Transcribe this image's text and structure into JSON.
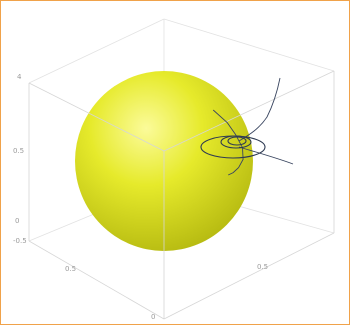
{
  "chart_data": {
    "type": "3d-scatter",
    "title": "",
    "xlabel": "",
    "ylabel": "",
    "zlabel": "",
    "box": "on",
    "grid": "off",
    "object": {
      "shape": "sphere",
      "color": "#e6ea2b",
      "center": [
        0,
        0,
        0
      ],
      "radius": 1
    },
    "trajectory": {
      "color": "#3a4660",
      "points": [
        [
          0.35,
          0.9,
          0.95
        ],
        [
          0.62,
          0.88,
          0.78
        ],
        [
          0.8,
          0.84,
          0.6
        ],
        [
          0.96,
          0.78,
          0.4
        ],
        [
          1.02,
          0.7,
          0.2
        ],
        [
          1.0,
          0.6,
          0.05
        ],
        [
          0.95,
          0.52,
          -0.05
        ],
        [
          0.9,
          0.45,
          -0.1
        ]
      ]
    },
    "axis_tick_labels": {
      "z": [
        "-0.5",
        "0",
        "0.5",
        "4"
      ],
      "x": [
        "0.5",
        "0"
      ],
      "y": [
        "0.5"
      ]
    }
  }
}
